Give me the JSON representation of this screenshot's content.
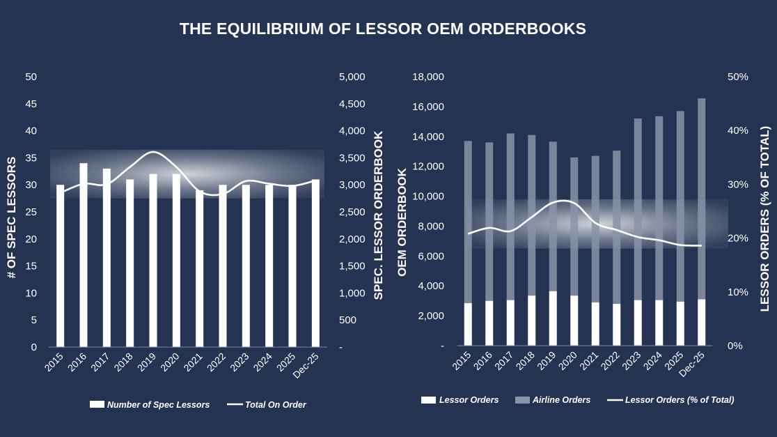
{
  "title": "THE EQUILIBRIUM OF LESSOR OEM ORDERBOOKS",
  "colors": {
    "background": "#243352",
    "bars": "#ffffff",
    "airline_bars": "#8a93a8",
    "line": "#ffffff",
    "highlight": "#ffffff"
  },
  "chart_data": [
    {
      "type": "bar",
      "title": "",
      "categories": [
        "2015",
        "2016",
        "2017",
        "2018",
        "2019",
        "2020",
        "2021",
        "2022",
        "2023",
        "2024",
        "2025",
        "Dec-25"
      ],
      "series": [
        {
          "name": "Number of Spec Lessors",
          "type": "bar",
          "axis": "left",
          "values": [
            30,
            34,
            33,
            31,
            32,
            32,
            29,
            30,
            30,
            30,
            30,
            31
          ]
        },
        {
          "name": "Total On Order",
          "type": "line",
          "axis": "right",
          "values": [
            2850,
            3020,
            3010,
            3330,
            3610,
            3330,
            2880,
            2830,
            3070,
            3020,
            2980,
            3080
          ]
        }
      ],
      "ylabel": "# OF SPEC LESSORS",
      "y2label": "SPEC. LESSOR ORDERBOOK",
      "ylim": [
        0,
        50
      ],
      "y2lim": [
        0,
        5000
      ],
      "yticks": [
        "0",
        "5",
        "10",
        "15",
        "20",
        "25",
        "30",
        "35",
        "40",
        "45",
        "50"
      ],
      "y2ticks": [
        "-",
        "500",
        "1,000",
        "1,500",
        "2,000",
        "2,500",
        "3,000",
        "3,500",
        "4,000",
        "4,500",
        "5,000"
      ],
      "highlight_band": [
        27.5,
        36.5
      ],
      "legend": [
        "Number of Spec Lessors",
        "Total On Order"
      ]
    },
    {
      "type": "bar",
      "title": "",
      "categories": [
        "2015",
        "2016",
        "2017",
        "2018",
        "2019",
        "2020",
        "2021",
        "2022",
        "2023",
        "2024",
        "2025",
        "Dec-25"
      ],
      "series": [
        {
          "name": "Lessor Orders",
          "type": "stacked-bar",
          "axis": "left",
          "values": [
            2850,
            3000,
            3050,
            3350,
            3650,
            3350,
            2900,
            2800,
            3050,
            3050,
            2950,
            3100
          ]
        },
        {
          "name": "Airline Orders",
          "type": "stacked-bar",
          "axis": "left",
          "values": [
            10850,
            10600,
            11150,
            10750,
            10000,
            9250,
            9800,
            10250,
            12150,
            12300,
            12750,
            13450
          ]
        },
        {
          "name": "Lessor Orders (% of Total)",
          "type": "line",
          "axis": "right",
          "values": [
            20.8,
            21.9,
            21.3,
            23.9,
            26.6,
            26.5,
            22.8,
            21.5,
            20.2,
            19.6,
            18.7,
            18.6
          ]
        }
      ],
      "ylabel": "OEM ORDERBOOK",
      "y2label": "LESSOR ORDERS (% OF TOTAL)",
      "ylim": [
        0,
        18000
      ],
      "y2lim": [
        0,
        50
      ],
      "yticks": [
        "-",
        "2,000",
        "4,000",
        "6,000",
        "8,000",
        "10,000",
        "12,000",
        "14,000",
        "16,000",
        "18,000"
      ],
      "y2ticks": [
        "0%",
        "10%",
        "20%",
        "30%",
        "40%",
        "50%"
      ],
      "highlight_band": [
        6500,
        9800
      ],
      "legend": [
        "Lessor Orders",
        "Airline Orders",
        "Lessor Orders (% of Total)"
      ]
    }
  ]
}
